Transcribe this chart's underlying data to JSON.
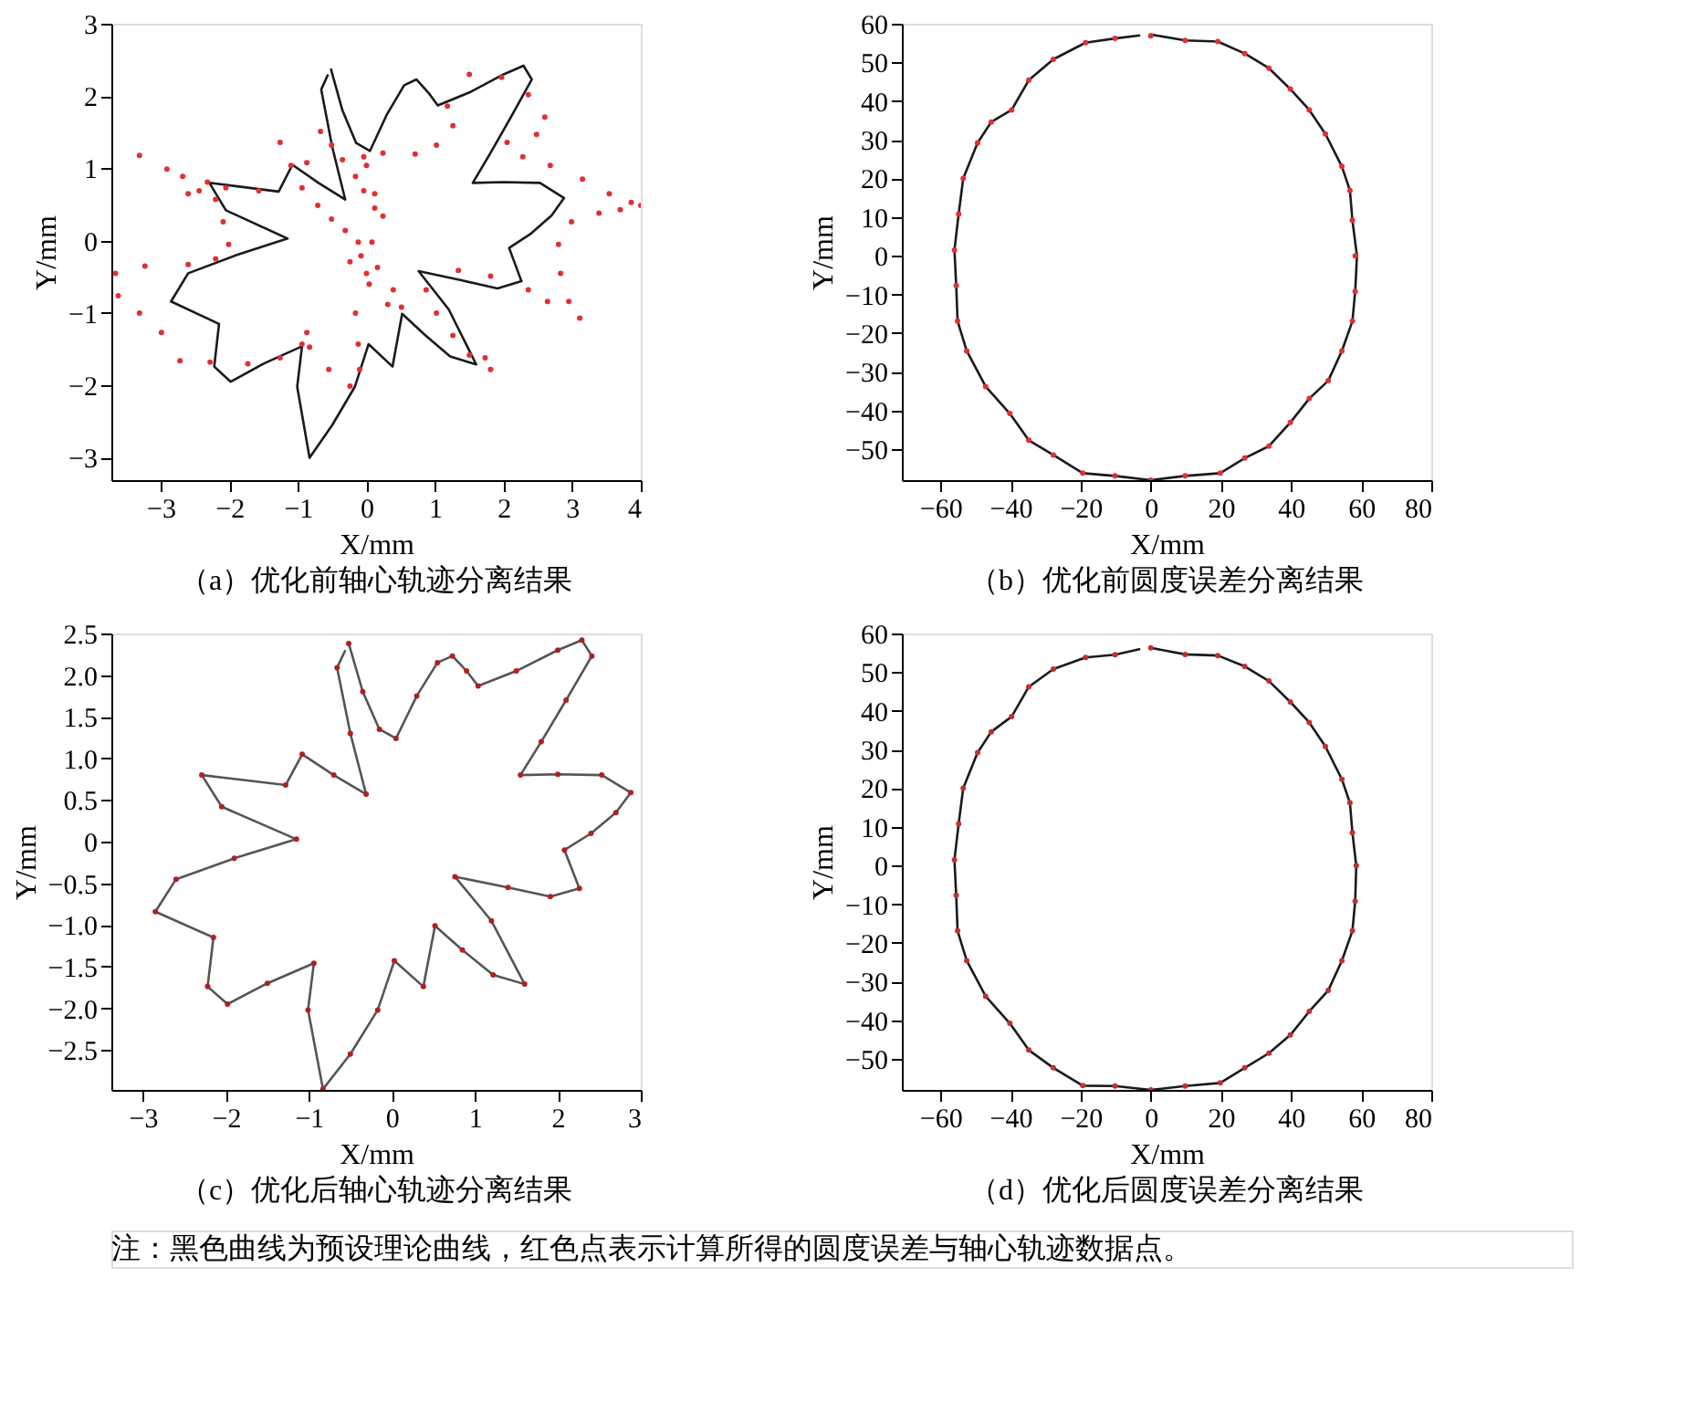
{
  "chart_data": [
    {
      "type": "line",
      "title": "（a）优化前轴心轨迹分离结果",
      "xlabel": "X/mm",
      "ylabel": "Y/mm",
      "xlim": [
        -3.72,
        4.0
      ],
      "ylim": [
        -3.31,
        3
      ],
      "xticks": [
        -3,
        -2,
        -1,
        0,
        1,
        2,
        3,
        4
      ],
      "yticks": [
        -3,
        -2,
        -1,
        0,
        1,
        2,
        3
      ],
      "grid": false,
      "series": [
        {
          "color": "#1a1a1a",
          "marker": "none",
          "x": [
            -0.52,
            -0.35,
            -0.15,
            0.05,
            0.3,
            0.55,
            0.73,
            0.9,
            1.04,
            1.5,
            2.0,
            2.29,
            2.41,
            2.1,
            1.8,
            1.55,
            2.0,
            2.53,
            2.88,
            2.7,
            2.4,
            2.08,
            2.26,
            1.91,
            1.4,
            0.76,
            1.2,
            1.6,
            1.22,
            0.85,
            0.52,
            0.38,
            0.03,
            -0.17,
            -0.5,
            -0.83,
            -1.01,
            -0.94,
            -1.5,
            -1.98,
            -2.22,
            -2.15,
            -2.85,
            -2.6,
            -1.9,
            -1.15,
            -2.05,
            -2.29,
            -1.28,
            -1.08,
            -0.7,
            -0.31,
            -0.5,
            -0.66,
            -0.56
          ],
          "values": [
            2.38,
            1.8,
            1.35,
            1.24,
            1.75,
            2.15,
            2.23,
            2.05,
            1.87,
            2.05,
            2.3,
            2.42,
            2.23,
            1.7,
            1.2,
            0.8,
            0.81,
            0.8,
            0.59,
            0.35,
            0.1,
            -0.1,
            -0.56,
            -0.66,
            -0.55,
            -0.42,
            -0.95,
            -1.71,
            -1.6,
            -1.3,
            -1.01,
            -1.74,
            -1.43,
            -2.02,
            -2.55,
            -3.0,
            -2.02,
            -1.46,
            -1.7,
            -1.95,
            -1.74,
            -1.15,
            -0.84,
            -0.45,
            -0.2,
            0.03,
            0.42,
            0.8,
            0.68,
            1.05,
            0.8,
            0.57,
            1.3,
            2.09,
            2.3
          ]
        },
        {
          "type": "scatter",
          "color": "#e03030",
          "marker": "circle",
          "x": [
            -3.31,
            -2.91,
            -2.68,
            -2.44,
            -2.2,
            -2.09,
            -2.01,
            -2.2,
            -2.6,
            -3.23,
            -3.66,
            -3.62,
            -3.31,
            -2.99,
            -2.72,
            -2.28,
            -1.73,
            -1.26,
            -0.94,
            -0.87,
            -0.83,
            -0.55,
            -0.24,
            -0.1,
            -0.12,
            -0.16,
            -0.24,
            -0.08,
            0.16,
            0.39,
            0.51,
            0.31,
            0.04,
            0.0,
            0.08,
            0.24,
            0.12,
            0.0,
            -0.04,
            0.24,
            0.71,
            1.02,
            1.26,
            1.18,
            1.5,
            1.97,
            2.36,
            2.6,
            2.48,
            2.05,
            2.28,
            2.68,
            3.15,
            3.54,
            3.86,
            4.0,
            3.7,
            3.39,
            2.99,
            2.8,
            2.83,
            2.95,
            3.11,
            2.64,
            2.36,
            1.81,
            1.34,
            0.87,
            1.02,
            1.26,
            1.5,
            1.81,
            1.73,
            -0.87,
            -1.26,
            -1.1,
            -0.94,
            -0.71,
            -0.51,
            -0.31,
            -0.12,
            -0.67,
            -0.51,
            -0.35,
            -0.16,
            -0.04,
            0.12,
            -1.57,
            -2.05,
            -2.6,
            -2.32
          ],
          "values": [
            1.18,
            0.99,
            0.89,
            0.69,
            0.57,
            0.26,
            -0.05,
            -0.25,
            -0.33,
            -0.35,
            -0.45,
            -0.76,
            -1.0,
            -1.27,
            -1.66,
            -1.68,
            -1.7,
            -1.62,
            -1.43,
            -1.27,
            -1.47,
            -1.78,
            -2.01,
            -1.78,
            -1.43,
            -1.0,
            -0.29,
            -0.21,
            -0.37,
            -0.68,
            -0.92,
            -0.88,
            -0.6,
            -0.45,
            -0.02,
            0.34,
            0.65,
            1.04,
            1.16,
            1.21,
            1.2,
            1.32,
            1.59,
            1.86,
            2.3,
            2.26,
            2.02,
            1.71,
            1.47,
            1.36,
            1.16,
            1.04,
            0.85,
            0.65,
            0.53,
            0.49,
            0.43,
            0.38,
            0.26,
            -0.05,
            -0.45,
            -0.84,
            -1.07,
            -0.84,
            -0.68,
            -0.49,
            -0.41,
            -0.68,
            -1.0,
            -1.31,
            -1.58,
            -1.78,
            -1.62,
            1.08,
            1.36,
            1.04,
            0.73,
            0.49,
            0.3,
            0.14,
            -0.02,
            1.51,
            1.32,
            1.12,
            0.89,
            0.69,
            0.45,
            0.69,
            0.73,
            0.65,
            0.81
          ]
        }
      ]
    },
    {
      "type": "line",
      "title": "（b）优化前圆度误差分离结果",
      "xlabel": "X/mm",
      "ylabel": "Y/mm",
      "xlim": [
        -71,
        80
      ],
      "ylim": [
        -58,
        60
      ],
      "xticks": [
        -60,
        -40,
        -20,
        0,
        20,
        40,
        60,
        80
      ],
      "yticks": [
        -50,
        -40,
        -30,
        -20,
        -10,
        0,
        10,
        20,
        30,
        40,
        50,
        60
      ],
      "grid": false,
      "series": [
        {
          "color": "#1a1a1a",
          "marker": "none",
          "x": [
            0,
            9.8,
            19.1,
            26.8,
            33.7,
            39.8,
            45.2,
            49.8,
            54.5,
            56.8,
            57.5,
            58.8,
            58.3,
            57.5,
            54.5,
            50.6,
            45.2,
            39.8,
            33.7,
            26.8,
            19.8,
            9.8,
            0,
            -10.2,
            -19.4,
            -27.8,
            -34.8,
            -40.2,
            -47.1,
            -52.5,
            -55.1,
            -55.5,
            -56.0,
            -54.8,
            -53.5,
            -49.4,
            -45.5,
            -39.7,
            -34.8,
            -27.8,
            -18.6,
            -10.2,
            -3.0
          ],
          "values": [
            57.2,
            55.7,
            55.4,
            52.3,
            48.5,
            43.1,
            37.7,
            31.5,
            23.1,
            16.9,
            9.2,
            0,
            -9.2,
            -16.9,
            -24.6,
            -32.3,
            -36.9,
            -43.1,
            -49.2,
            -52.3,
            -56.2,
            -56.9,
            -58.0,
            -56.9,
            -56.2,
            -51.5,
            -47.7,
            -40.8,
            -33.8,
            -24.6,
            -16.9,
            -7.7,
            1.5,
            10.8,
            20.0,
            29.2,
            34.6,
            37.7,
            45.4,
            50.8,
            55.1,
            56.2,
            57.0
          ]
        },
        {
          "type": "scatter",
          "color": "#e03030",
          "marker": "circle",
          "x": [
            0,
            9.8,
            19.1,
            26.8,
            33.7,
            39.8,
            45.2,
            49.8,
            54.5,
            56.8,
            57.5,
            58.3,
            58.3,
            57.5,
            54.5,
            50.6,
            45.2,
            39.8,
            33.7,
            26.8,
            19.8,
            9.8,
            0,
            -10.2,
            -19.4,
            -27.8,
            -34.8,
            -40.2,
            -47.1,
            -52.5,
            -55.1,
            -55.5,
            -56.0,
            -54.8,
            -53.5,
            -49.4,
            -45.5,
            -39.7,
            -34.8,
            -27.8,
            -18.6,
            -10.2
          ],
          "values": [
            56.9,
            55.7,
            55.4,
            52.3,
            48.5,
            43.1,
            37.7,
            31.5,
            23.1,
            16.9,
            9.2,
            0,
            -9.2,
            -16.9,
            -24.6,
            -32.3,
            -36.9,
            -43.1,
            -49.2,
            -52.3,
            -56.2,
            -56.9,
            -58.0,
            -56.9,
            -56.2,
            -51.5,
            -47.7,
            -40.8,
            -33.8,
            -24.6,
            -16.9,
            -7.7,
            1.5,
            10.8,
            20.0,
            29.2,
            34.6,
            37.7,
            45.4,
            50.8,
            55.1,
            56.2
          ]
        }
      ]
    },
    {
      "type": "line",
      "title": "（c）优化后轴心轨迹分离结果",
      "xlabel": "X/mm",
      "ylabel": "Y/mm",
      "xlim": [
        -3.38,
        3.0
      ],
      "ylim": [
        -2.98,
        2.5
      ],
      "xticks": [
        -3,
        -2,
        -1,
        0,
        1,
        2,
        3
      ],
      "yticks": [
        {
          "value": -2.5,
          "label": "−2.5"
        },
        {
          "value": -2,
          "label": "−2.0"
        },
        {
          "value": -1.5,
          "label": "−1.5"
        },
        {
          "value": -1,
          "label": "−1.0"
        },
        {
          "value": -0.5,
          "label": "−0.5"
        },
        0,
        {
          "value": 0.5,
          "label": "0.5"
        },
        {
          "value": 1,
          "label": "1.0"
        },
        {
          "value": 1.5,
          "label": "1.5"
        },
        {
          "value": 2,
          "label": "2.0"
        },
        {
          "value": 2.5,
          "label": "2.5"
        }
      ],
      "grid": false,
      "series": [
        {
          "color": "#555555",
          "marker": "none",
          "x": [
            -0.52,
            -0.35,
            -0.15,
            0.05,
            0.3,
            0.55,
            0.73,
            0.9,
            1.04,
            1.5,
            2.0,
            2.29,
            2.41,
            2.1,
            1.8,
            1.55,
            2.0,
            2.53,
            2.88,
            2.7,
            2.4,
            2.08,
            2.26,
            1.91,
            1.4,
            0.76,
            1.2,
            1.6,
            1.22,
            0.85,
            0.52,
            0.38,
            0.03,
            -0.17,
            -0.5,
            -0.83,
            -1.01,
            -0.94,
            -1.5,
            -1.98,
            -2.22,
            -2.15,
            -2.85,
            -2.6,
            -1.9,
            -1.15,
            -2.05,
            -2.29,
            -1.28,
            -1.08,
            -0.7,
            -0.31,
            -0.5,
            -0.66,
            -0.56
          ],
          "values": [
            2.38,
            1.8,
            1.35,
            1.24,
            1.75,
            2.15,
            2.23,
            2.05,
            1.87,
            2.05,
            2.3,
            2.42,
            2.23,
            1.7,
            1.2,
            0.8,
            0.81,
            0.8,
            0.59,
            0.35,
            0.1,
            -0.1,
            -0.56,
            -0.66,
            -0.55,
            -0.42,
            -0.95,
            -1.71,
            -1.6,
            -1.3,
            -1.01,
            -1.74,
            -1.43,
            -2.02,
            -2.55,
            -2.97,
            -2.02,
            -1.46,
            -1.7,
            -1.95,
            -1.74,
            -1.15,
            -0.84,
            -0.45,
            -0.2,
            0.03,
            0.42,
            0.8,
            0.68,
            1.05,
            0.8,
            0.57,
            1.3,
            2.09,
            2.3
          ]
        },
        {
          "type": "scatter",
          "color": "#b02020",
          "marker": "circle",
          "x": [
            -0.52,
            -0.35,
            -0.15,
            0.05,
            0.3,
            0.55,
            0.73,
            0.9,
            1.04,
            1.5,
            2.0,
            2.29,
            2.41,
            2.1,
            1.8,
            1.55,
            2.0,
            2.53,
            2.88,
            2.7,
            2.4,
            2.08,
            2.26,
            1.91,
            1.4,
            0.76,
            1.2,
            1.6,
            1.22,
            0.85,
            0.52,
            0.38,
            0.03,
            -0.17,
            -0.5,
            -0.83,
            -1.01,
            -0.94,
            -1.5,
            -1.98,
            -2.22,
            -2.15,
            -2.85,
            -2.6,
            -1.9,
            -1.15,
            -2.05,
            -2.29,
            -1.28,
            -1.08,
            -0.7,
            -0.31,
            -0.5,
            -0.66
          ],
          "values": [
            2.38,
            1.8,
            1.35,
            1.24,
            1.75,
            2.15,
            2.23,
            2.05,
            1.87,
            2.05,
            2.3,
            2.42,
            2.23,
            1.7,
            1.2,
            0.8,
            0.81,
            0.8,
            0.59,
            0.35,
            0.1,
            -0.1,
            -0.56,
            -0.66,
            -0.55,
            -0.42,
            -0.95,
            -1.71,
            -1.6,
            -1.3,
            -1.01,
            -1.74,
            -1.43,
            -2.02,
            -2.55,
            -2.97,
            -2.02,
            -1.46,
            -1.7,
            -1.95,
            -1.74,
            -1.15,
            -0.84,
            -0.45,
            -0.2,
            0.03,
            0.42,
            0.8,
            0.68,
            1.05,
            0.8,
            0.57,
            1.3,
            2.09
          ]
        }
      ]
    },
    {
      "type": "line",
      "title": "（d）优化后圆度误差分离结果",
      "xlabel": "X/mm",
      "ylabel": "Y/mm",
      "xlim": [
        -71,
        80
      ],
      "ylim": [
        -58,
        60
      ],
      "xticks": [
        -60,
        -40,
        -20,
        0,
        20,
        40,
        60,
        80
      ],
      "yticks": [
        -50,
        -40,
        -30,
        -20,
        -10,
        0,
        10,
        20,
        30,
        40,
        50,
        60
      ],
      "grid": false,
      "annotations": [
        "注：黑色曲线为预设理论曲线，红色点表示计算所得的圆度误差与轴心轨迹数据点。"
      ],
      "series": [
        {
          "color": "#1a1a1a",
          "marker": "none",
          "x": [
            0,
            9.8,
            19.1,
            26.8,
            33.7,
            39.8,
            45.2,
            49.8,
            54.5,
            56.8,
            57.5,
            58.6,
            58.3,
            57.5,
            54.5,
            50.6,
            45.2,
            39.8,
            33.7,
            26.8,
            19.8,
            9.8,
            0,
            -10.2,
            -19.4,
            -27.8,
            -34.8,
            -40.2,
            -47.1,
            -52.5,
            -55.1,
            -55.5,
            -56.0,
            -54.8,
            -53.5,
            -49.4,
            -45.5,
            -39.7,
            -34.8,
            -27.8,
            -18.6,
            -10.2,
            -3.0
          ],
          "values": [
            56.3,
            54.6,
            54.3,
            51.5,
            47.7,
            42.3,
            37.0,
            30.8,
            22.3,
            16.2,
            8.5,
            0,
            -9.2,
            -16.9,
            -24.6,
            -32.3,
            -37.7,
            -43.8,
            -48.5,
            -52.3,
            -56.2,
            -57.0,
            -58.0,
            -57.0,
            -56.9,
            -52.3,
            -47.7,
            -40.8,
            -33.8,
            -24.6,
            -16.9,
            -7.7,
            1.5,
            10.8,
            20.0,
            29.2,
            34.6,
            38.5,
            46.2,
            50.8,
            53.8,
            54.5,
            56.0
          ]
        },
        {
          "type": "scatter",
          "color": "#c03030",
          "marker": "circle",
          "x": [
            0,
            9.8,
            19.1,
            26.8,
            33.7,
            39.8,
            45.2,
            49.8,
            54.5,
            56.8,
            57.5,
            58.6,
            58.3,
            57.5,
            54.5,
            50.6,
            45.2,
            39.8,
            33.7,
            26.8,
            19.8,
            9.8,
            0,
            -10.2,
            -19.4,
            -27.8,
            -34.8,
            -40.2,
            -47.1,
            -52.5,
            -55.1,
            -55.5,
            -56.0,
            -54.8,
            -53.5,
            -49.4,
            -45.5,
            -39.7,
            -34.8,
            -27.8,
            -18.6,
            -10.2
          ],
          "values": [
            56.3,
            54.6,
            54.3,
            51.5,
            47.7,
            42.3,
            37.0,
            30.8,
            22.3,
            16.2,
            8.5,
            0,
            -9.2,
            -16.9,
            -24.6,
            -32.3,
            -37.7,
            -43.8,
            -48.5,
            -52.3,
            -56.2,
            -57.0,
            -58.0,
            -57.0,
            -56.9,
            -52.3,
            -47.7,
            -40.8,
            -33.8,
            -24.6,
            -16.9,
            -7.7,
            1.5,
            10.8,
            20.0,
            29.2,
            34.6,
            38.5,
            46.2,
            50.8,
            53.8,
            54.5
          ]
        }
      ]
    }
  ]
}
